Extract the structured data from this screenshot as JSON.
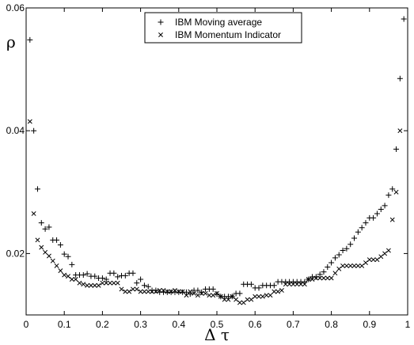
{
  "chart_data": {
    "type": "scatter",
    "xlabel": "Δ τ",
    "ylabel": "ρ",
    "xlim": [
      0,
      1
    ],
    "ylim": [
      0.01,
      0.06
    ],
    "x_ticks": [
      0,
      0.1,
      0.2,
      0.3,
      0.4,
      0.5,
      0.6,
      0.7,
      0.8,
      0.9,
      1
    ],
    "x_tick_labels": [
      "0",
      "0.1",
      "0.2",
      "0.3",
      "0.4",
      "0.5",
      "0.6",
      "0.7",
      "0.8",
      "0.9",
      "1"
    ],
    "y_ticks": [
      0.02,
      0.04,
      0.06
    ],
    "y_tick_labels": [
      "0.02",
      "0.04",
      "0.06"
    ],
    "grid": false,
    "legend_position": "top-center",
    "series": [
      {
        "name": "IBM  Moving average",
        "marker": "plus",
        "x": [
          0.01,
          0.02,
          0.03,
          0.04,
          0.05,
          0.06,
          0.07,
          0.08,
          0.09,
          0.1,
          0.11,
          0.12,
          0.13,
          0.14,
          0.15,
          0.16,
          0.17,
          0.18,
          0.19,
          0.2,
          0.21,
          0.22,
          0.23,
          0.24,
          0.25,
          0.26,
          0.27,
          0.28,
          0.29,
          0.3,
          0.31,
          0.32,
          0.33,
          0.34,
          0.35,
          0.36,
          0.37,
          0.38,
          0.39,
          0.4,
          0.41,
          0.42,
          0.43,
          0.44,
          0.45,
          0.46,
          0.47,
          0.48,
          0.49,
          0.5,
          0.51,
          0.52,
          0.53,
          0.54,
          0.55,
          0.56,
          0.57,
          0.58,
          0.59,
          0.6,
          0.61,
          0.62,
          0.63,
          0.64,
          0.65,
          0.66,
          0.67,
          0.68,
          0.69,
          0.7,
          0.71,
          0.72,
          0.73,
          0.74,
          0.75,
          0.76,
          0.77,
          0.78,
          0.79,
          0.8,
          0.81,
          0.82,
          0.83,
          0.84,
          0.85,
          0.86,
          0.87,
          0.88,
          0.89,
          0.9,
          0.91,
          0.92,
          0.93,
          0.94,
          0.95,
          0.96,
          0.97,
          0.98,
          0.99
        ],
        "values": [
          0.0548,
          0.04,
          0.0305,
          0.025,
          0.024,
          0.0243,
          0.0222,
          0.0222,
          0.0214,
          0.0199,
          0.0195,
          0.0182,
          0.0165,
          0.0165,
          0.0165,
          0.0167,
          0.0163,
          0.0163,
          0.016,
          0.016,
          0.0158,
          0.0168,
          0.0168,
          0.0162,
          0.0164,
          0.0164,
          0.0168,
          0.0168,
          0.0152,
          0.0158,
          0.0148,
          0.0146,
          0.014,
          0.014,
          0.0137,
          0.0137,
          0.0137,
          0.0137,
          0.0137,
          0.0137,
          0.0137,
          0.0137,
          0.0134,
          0.014,
          0.014,
          0.0137,
          0.0142,
          0.0142,
          0.0142,
          0.0134,
          0.013,
          0.013,
          0.013,
          0.013,
          0.0135,
          0.0135,
          0.015,
          0.015,
          0.015,
          0.0144,
          0.0144,
          0.0148,
          0.0148,
          0.0148,
          0.0148,
          0.0154,
          0.0154,
          0.0154,
          0.0154,
          0.0154,
          0.0154,
          0.0154,
          0.0154,
          0.0158,
          0.0162,
          0.0162,
          0.0166,
          0.017,
          0.0178,
          0.0185,
          0.0193,
          0.0198,
          0.0205,
          0.0208,
          0.0215,
          0.0225,
          0.0235,
          0.0242,
          0.025,
          0.0258,
          0.0258,
          0.0265,
          0.0272,
          0.0278,
          0.0295,
          0.0305,
          0.037,
          0.0485,
          0.0582
        ]
      },
      {
        "name": "IBM  Momentum Indicator",
        "marker": "cross",
        "x": [
          0.01,
          0.02,
          0.03,
          0.04,
          0.05,
          0.06,
          0.07,
          0.08,
          0.09,
          0.1,
          0.11,
          0.12,
          0.13,
          0.14,
          0.15,
          0.16,
          0.17,
          0.18,
          0.19,
          0.2,
          0.21,
          0.22,
          0.23,
          0.24,
          0.25,
          0.26,
          0.27,
          0.28,
          0.29,
          0.3,
          0.31,
          0.32,
          0.33,
          0.34,
          0.35,
          0.36,
          0.37,
          0.38,
          0.39,
          0.4,
          0.41,
          0.42,
          0.43,
          0.44,
          0.45,
          0.46,
          0.47,
          0.48,
          0.49,
          0.5,
          0.51,
          0.52,
          0.53,
          0.54,
          0.55,
          0.56,
          0.57,
          0.58,
          0.59,
          0.6,
          0.61,
          0.62,
          0.63,
          0.64,
          0.65,
          0.66,
          0.67,
          0.68,
          0.69,
          0.7,
          0.71,
          0.72,
          0.73,
          0.74,
          0.75,
          0.76,
          0.77,
          0.78,
          0.79,
          0.8,
          0.81,
          0.82,
          0.83,
          0.84,
          0.85,
          0.86,
          0.87,
          0.88,
          0.89,
          0.9,
          0.91,
          0.92,
          0.93,
          0.94,
          0.95,
          0.96,
          0.97,
          0.98
        ],
        "values": [
          0.0415,
          0.0265,
          0.0222,
          0.021,
          0.0202,
          0.0196,
          0.0188,
          0.018,
          0.0172,
          0.0165,
          0.0163,
          0.0158,
          0.0158,
          0.0152,
          0.015,
          0.0148,
          0.0148,
          0.0148,
          0.0148,
          0.0152,
          0.0152,
          0.0152,
          0.0152,
          0.0152,
          0.0142,
          0.0138,
          0.0138,
          0.0142,
          0.0142,
          0.0138,
          0.0138,
          0.0138,
          0.0138,
          0.0138,
          0.014,
          0.014,
          0.0138,
          0.0138,
          0.014,
          0.0138,
          0.0138,
          0.0132,
          0.0138,
          0.0135,
          0.0132,
          0.0135,
          0.0135,
          0.0132,
          0.0132,
          0.0135,
          0.013,
          0.0125,
          0.0125,
          0.013,
          0.0125,
          0.012,
          0.012,
          0.0125,
          0.0125,
          0.013,
          0.013,
          0.013,
          0.0132,
          0.0132,
          0.0138,
          0.0138,
          0.014,
          0.015,
          0.015,
          0.015,
          0.015,
          0.015,
          0.015,
          0.0158,
          0.0158,
          0.016,
          0.016,
          0.016,
          0.016,
          0.016,
          0.0168,
          0.0175,
          0.018,
          0.018,
          0.018,
          0.018,
          0.018,
          0.018,
          0.0185,
          0.019,
          0.019,
          0.019,
          0.0195,
          0.02,
          0.0205,
          0.0255,
          0.03,
          0.04
        ]
      }
    ]
  }
}
